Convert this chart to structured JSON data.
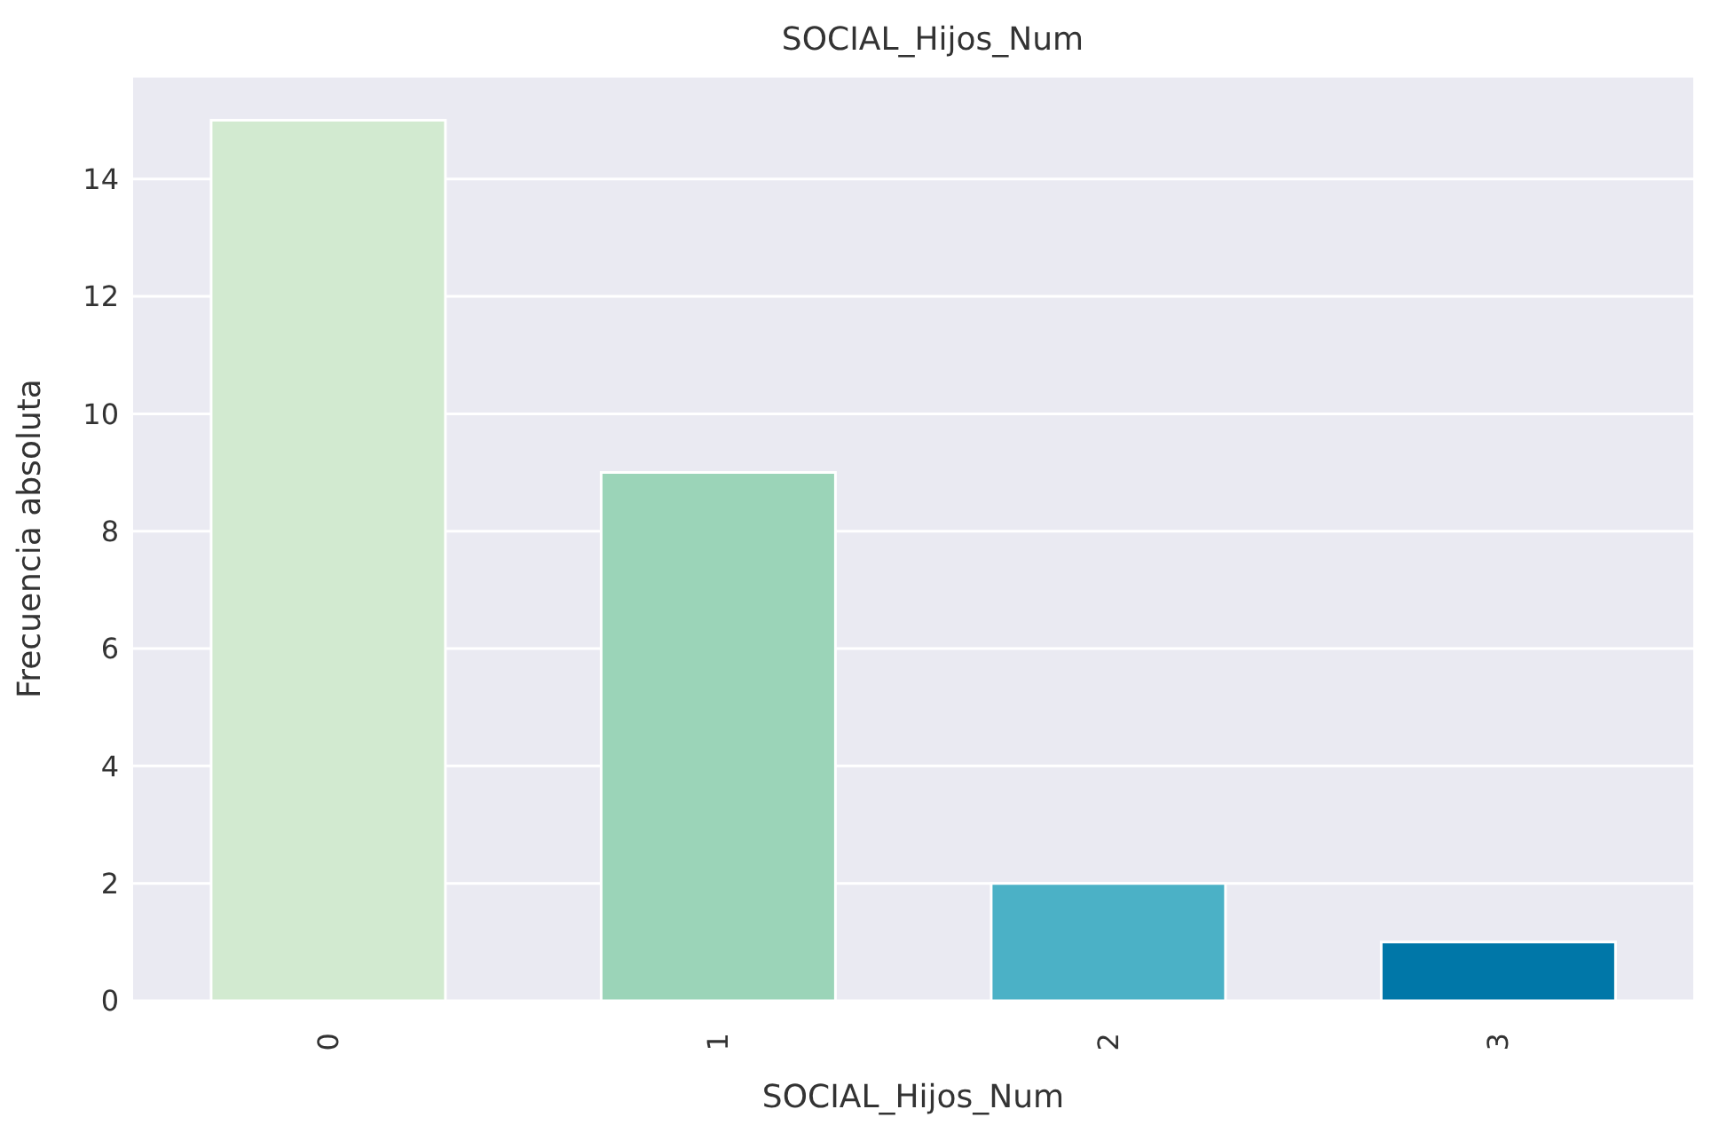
{
  "chart_data": {
    "type": "bar",
    "title": "SOCIAL_Hijos_Num",
    "xlabel": "SOCIAL_Hijos_Num",
    "ylabel": "Frecuencia absoluta",
    "categories": [
      "0",
      "1",
      "2",
      "3"
    ],
    "values": [
      15,
      9,
      2,
      1
    ],
    "colors": [
      "#d2ead0",
      "#9bd4b8",
      "#4bb1c6",
      "#0077a8"
    ],
    "ylim": [
      0,
      15.75
    ],
    "yticks": [
      0,
      2,
      4,
      6,
      8,
      10,
      12,
      14
    ],
    "grid": "y"
  }
}
